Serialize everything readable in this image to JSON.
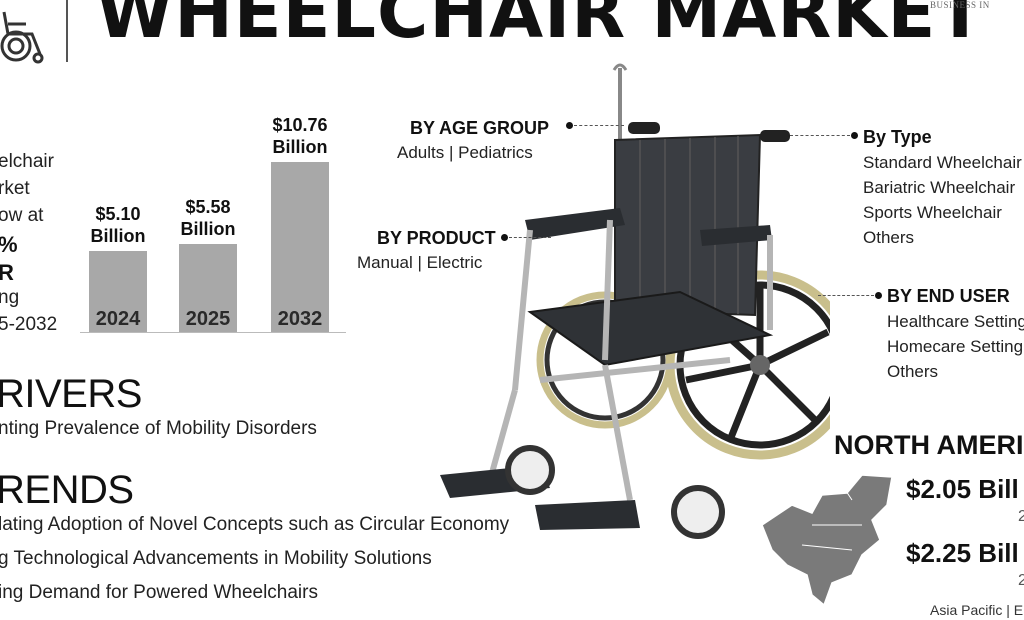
{
  "header": {
    "title": "WHEELCHAIR MARKET",
    "publisher": "BUSINESS IN"
  },
  "summary": {
    "lines": [
      "elchair",
      "rket",
      "ow at",
      "%",
      "R",
      "ng",
      "5-2032"
    ]
  },
  "chart_data": {
    "type": "bar",
    "categories": [
      "2024",
      "2025",
      "2032"
    ],
    "values": [
      5.1,
      5.58,
      10.76
    ],
    "value_labels": [
      [
        "$5.10",
        "Billion"
      ],
      [
        "$5.58",
        "Billion"
      ],
      [
        "$10.76",
        "Billion"
      ]
    ],
    "title": "",
    "xlabel": "",
    "ylabel": "",
    "ylim": [
      0,
      10.76
    ],
    "grid": false,
    "colors": {
      "bar": "#a8a8a8"
    }
  },
  "drivers": {
    "heading": "RIVERS",
    "items": [
      "nting Prevalence of Mobility Disorders"
    ]
  },
  "trends": {
    "heading": "RENDS",
    "items": [
      "lating Adoption of Novel Concepts such as Circular Economy",
      "g Technological Advancements in Mobility Solutions",
      "ing Demand for Powered Wheelchairs"
    ]
  },
  "segments": {
    "age_group": {
      "heading": "BY AGE GROUP",
      "text": "Adults  |  Pediatrics"
    },
    "product": {
      "heading": "BY PRODUCT",
      "text": "Manual  |  Electric"
    },
    "type": {
      "heading": "By Type",
      "items": [
        "Standard Wheelchair",
        "Bariatric Wheelchair",
        "Sports Wheelchair",
        "Others"
      ]
    },
    "end_user": {
      "heading": "BY END USER",
      "items": [
        "Healthcare Setting",
        "Homecare Setting",
        "Others"
      ]
    }
  },
  "region": {
    "heading": "NORTH AMERI",
    "value_1": "$2.05 Bill",
    "year_1": "2",
    "value_2": "$2.25 Bill",
    "year_2": "2",
    "footer": "Asia Pacific  |  E"
  },
  "icons": {
    "logo": "wheelchair-icon",
    "product_image": "wheelchair-photo",
    "map": "north-america-map"
  },
  "colors": {
    "bar": "#a8a8a8",
    "text": "#111111",
    "map": "#7a7a7a"
  }
}
